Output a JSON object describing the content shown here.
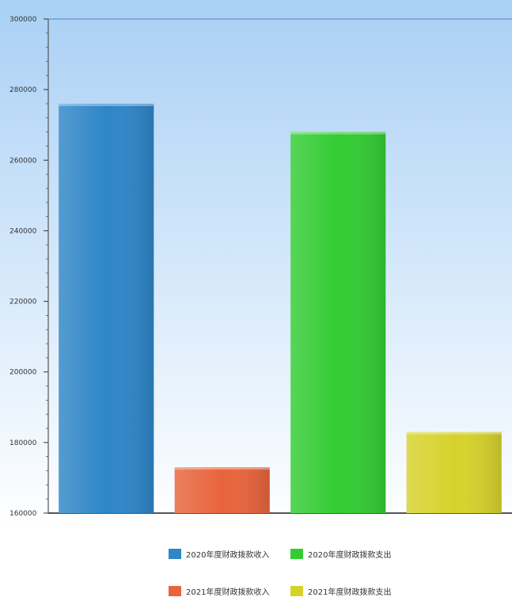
{
  "chart_data": {
    "type": "bar",
    "title": "",
    "xlabel": "",
    "ylabel": "",
    "ylim": [
      160000,
      300000
    ],
    "yticks": [
      160000,
      180000,
      200000,
      220000,
      240000,
      260000,
      280000,
      300000
    ],
    "ytick_labels": [
      "160000",
      "180000",
      "200000",
      "220000",
      "240000",
      "260000",
      "280000",
      "300000"
    ],
    "series": [
      {
        "name": "2020年度财政拨款收入",
        "value": 276000,
        "color": "#2e86c8"
      },
      {
        "name": "2021年度财政拨款收入",
        "value": 173000,
        "color": "#e8643c"
      },
      {
        "name": "2020年度财政拨款支出",
        "value": 268000,
        "color": "#33cc33"
      },
      {
        "name": "2021年度财政拨款支出",
        "value": 183000,
        "color": "#d6d22c"
      }
    ],
    "legend_position": "bottom",
    "grid": false
  }
}
